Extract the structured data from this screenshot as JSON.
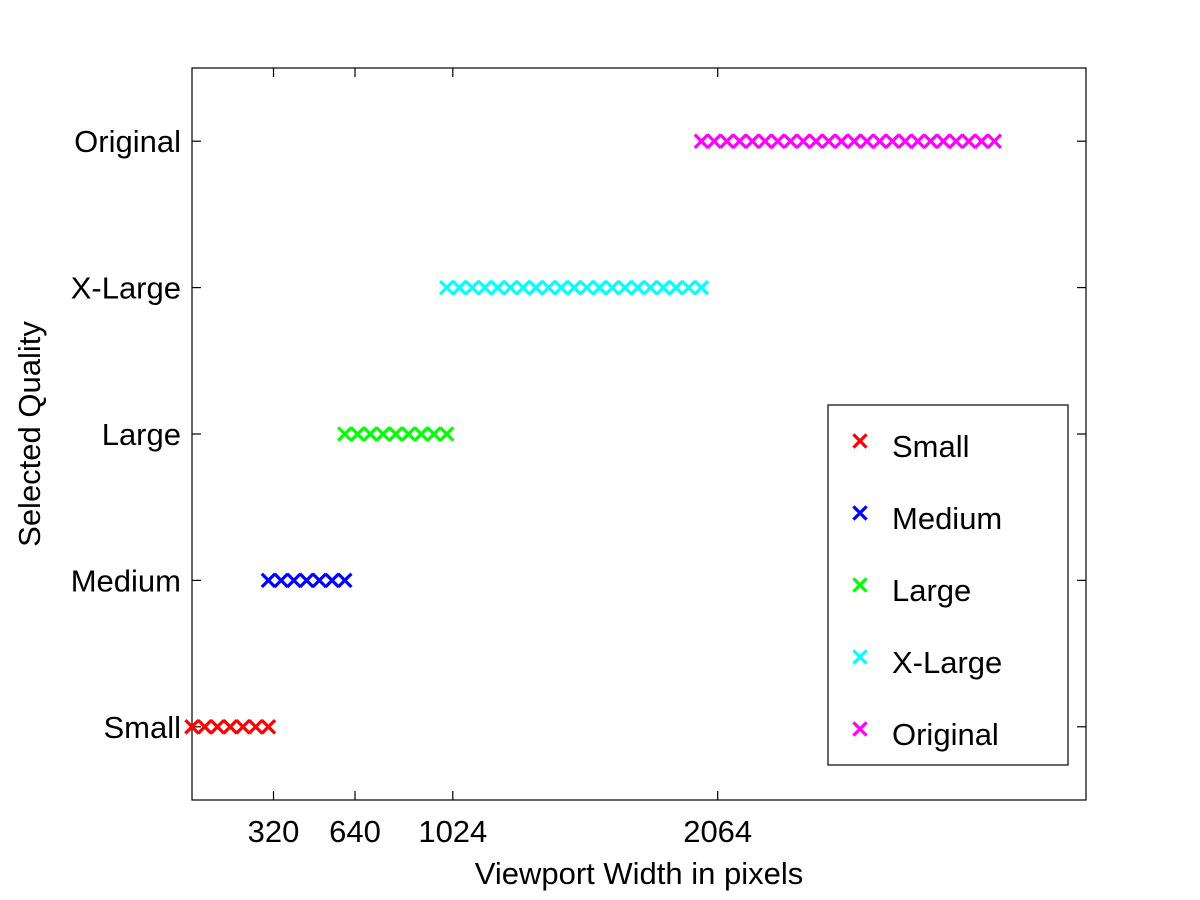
{
  "chart_data": {
    "type": "scatter",
    "title": "",
    "xlabel": "Viewport Width in pixels",
    "ylabel": "Selected Quality",
    "xlim": [
      0,
      3510
    ],
    "ylim": [
      -0.5,
      4.5
    ],
    "xticks": [
      320,
      640,
      1024,
      2064
    ],
    "xtick_labels": [
      "320",
      "640",
      "1024",
      "2064"
    ],
    "yticks": [
      0,
      1,
      2,
      3,
      4
    ],
    "ytick_labels": [
      "Small",
      "Medium",
      "Large",
      "X-Large",
      "Original"
    ],
    "grid": false,
    "legend": "right",
    "marker": "x",
    "series": [
      {
        "name": "Small",
        "color": "#ff0000",
        "y": 0,
        "x": [
          0,
          50,
          100,
          150,
          200,
          250,
          300
        ]
      },
      {
        "name": "Medium",
        "color": "#0000ff",
        "y": 1,
        "x": [
          300,
          350,
          400,
          450,
          500,
          550,
          600
        ]
      },
      {
        "name": "Large",
        "color": "#00ff00",
        "y": 2,
        "x": [
          600,
          650,
          700,
          750,
          800,
          850,
          900,
          950,
          1000
        ]
      },
      {
        "name": "X-Large",
        "color": "#00ffff",
        "y": 3,
        "x": [
          1000,
          1050,
          1100,
          1150,
          1200,
          1250,
          1300,
          1350,
          1400,
          1450,
          1500,
          1550,
          1600,
          1650,
          1700,
          1750,
          1800,
          1850,
          1900,
          1950,
          2000
        ]
      },
      {
        "name": "Original",
        "color": "#ff00ff",
        "y": 4,
        "x": [
          2000,
          2050,
          2100,
          2150,
          2200,
          2250,
          2300,
          2350,
          2400,
          2450,
          2500,
          2550,
          2600,
          2650,
          2700,
          2750,
          2800,
          2850,
          2900,
          2950,
          3000,
          3050,
          3100,
          3150
        ]
      }
    ]
  }
}
